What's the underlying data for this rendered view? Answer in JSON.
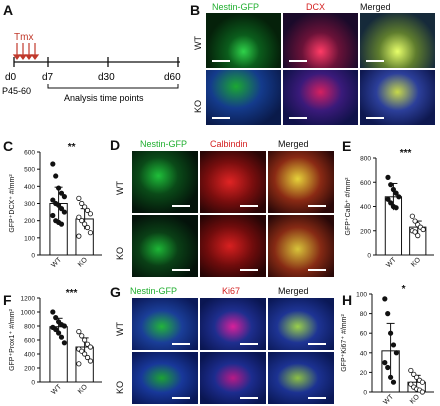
{
  "panels": {
    "A": {
      "letter": "A",
      "treatment": "Tmx",
      "timepoints": [
        "d0",
        "d7",
        "d30",
        "d60"
      ],
      "age_label": "P45-60",
      "analysis_label": "Analysis time points"
    },
    "B": {
      "letter": "B",
      "headers": [
        "Nestin-GFP",
        "DCX",
        "Merged"
      ],
      "rows": [
        "WT",
        "KO"
      ]
    },
    "C": {
      "letter": "C",
      "significance": "**"
    },
    "D": {
      "letter": "D",
      "headers": [
        "Nestin-GFP",
        "Calbindin",
        "Merged"
      ],
      "rows": [
        "WT",
        "KO"
      ]
    },
    "E": {
      "letter": "E",
      "significance": "***"
    },
    "F": {
      "letter": "F",
      "significance": "***"
    },
    "G": {
      "letter": "G",
      "headers": [
        "Nestin-GFP",
        "Ki67",
        "Merged"
      ],
      "rows": [
        "WT",
        "KO"
      ]
    },
    "H": {
      "letter": "H",
      "significance": "*"
    }
  },
  "colors": {
    "green": "#1fae2e",
    "red": "#d42020",
    "blue": "#1e3aa8"
  },
  "chart_data": [
    {
      "panel": "C",
      "type": "bar",
      "categories": [
        "WT",
        "KO"
      ],
      "values": [
        300,
        210
      ],
      "errors": [
        95,
        60
      ],
      "points": [
        [
          530,
          460,
          390,
          360,
          340,
          320,
          300,
          290,
          270,
          250,
          230,
          200,
          190,
          180
        ],
        [
          330,
          300,
          280,
          260,
          240,
          220,
          200,
          180,
          160,
          130,
          110
        ]
      ],
      "ylabel": "GFP⁺DCX⁺ #/mm²",
      "ylim": [
        0,
        600
      ],
      "yticks": [
        "0",
        "100",
        "200",
        "300",
        "400",
        "500",
        "600"
      ]
    },
    {
      "panel": "E",
      "type": "bar",
      "categories": [
        "WT",
        "KO"
      ],
      "values": [
        480,
        230
      ],
      "errors": [
        110,
        50
      ],
      "points": [
        [
          640,
          580,
          540,
          510,
          480,
          460,
          430,
          400,
          390
        ],
        [
          320,
          280,
          250,
          230,
          210,
          200,
          190,
          160
        ]
      ],
      "ylabel": "GFP⁺Calb⁺ #/mm²",
      "ylim": [
        0,
        800
      ],
      "yticks": [
        "0",
        "200",
        "400",
        "600",
        "800"
      ]
    },
    {
      "panel": "F",
      "type": "bar",
      "categories": [
        "WT",
        "KO"
      ],
      "values": [
        790,
        500
      ],
      "errors": [
        120,
        130
      ],
      "points": [
        [
          1000,
          920,
          860,
          820,
          800,
          780,
          750,
          700,
          640,
          560
        ],
        [
          720,
          660,
          600,
          540,
          500,
          470,
          440,
          400,
          350,
          300,
          260
        ]
      ],
      "ylabel": "GFP⁺Prox1⁺ #/mm²",
      "ylim": [
        0,
        1200
      ],
      "yticks": [
        "0",
        "200",
        "400",
        "600",
        "800",
        "1000",
        "1200"
      ]
    },
    {
      "panel": "H",
      "type": "bar",
      "categories": [
        "WT",
        "KO"
      ],
      "values": [
        42,
        10
      ],
      "errors": [
        28,
        7
      ],
      "points": [
        [
          95,
          80,
          60,
          48,
          40,
          30,
          25,
          15,
          10
        ],
        [
          22,
          18,
          15,
          12,
          10,
          8,
          5,
          3,
          2,
          0
        ]
      ],
      "ylabel": "GFP⁺Ki67⁺ #/mm²",
      "ylim": [
        0,
        100
      ],
      "yticks": [
        "0",
        "20",
        "40",
        "60",
        "80",
        "100"
      ]
    }
  ]
}
